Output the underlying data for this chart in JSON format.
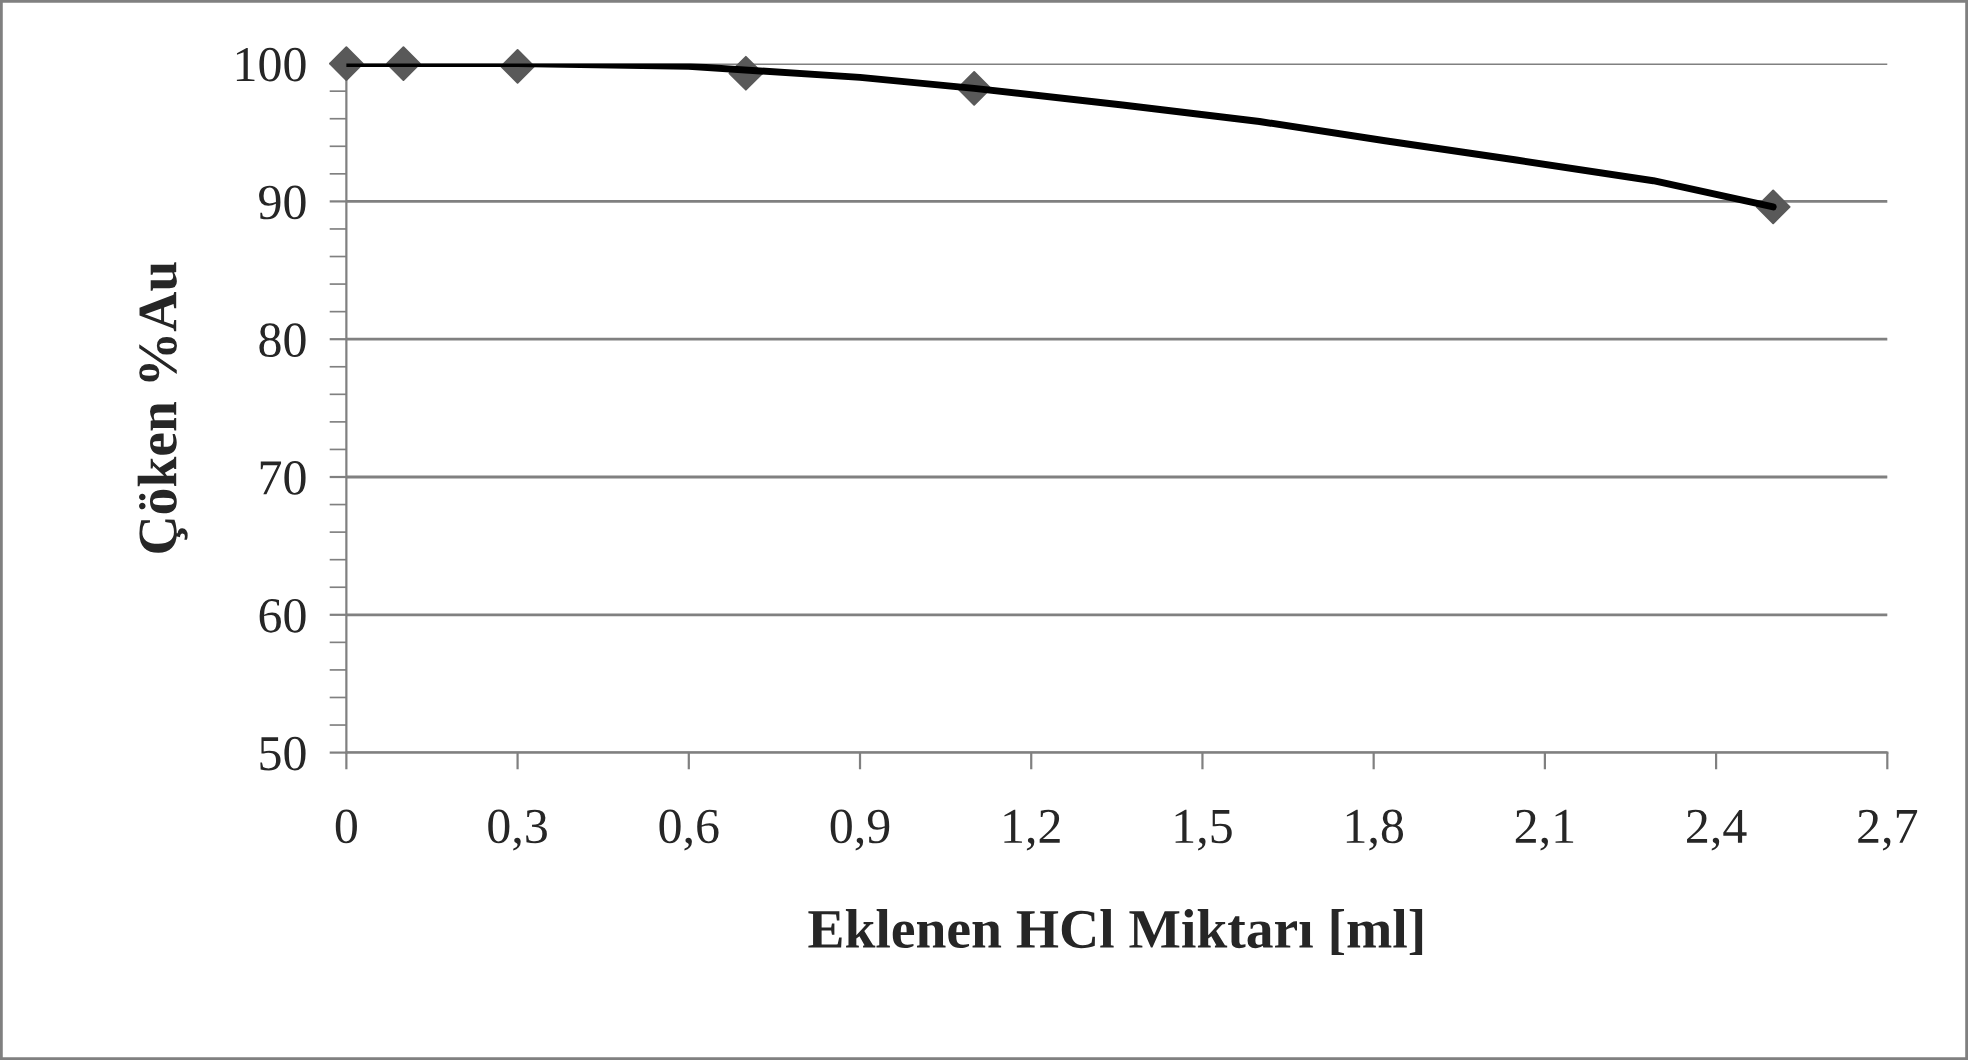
{
  "chart_data": {
    "type": "scatter",
    "xlabel": "Eklenen HCl Miktarı [ml]",
    "ylabel": "Çöken %Au",
    "series": [
      {
        "color": "#595959",
        "marker": "diamond",
        "x": [
          0,
          0.1,
          0.3,
          0.7,
          1.1,
          2.5
        ],
        "values": [
          100,
          100,
          99.8,
          99.3,
          98.2,
          89.6
        ]
      },
      {
        "type": "line",
        "color": "#000000",
        "marker": "none",
        "line_style": "solid",
        "x": [
          0,
          0.3,
          0.6,
          0.9,
          1.1,
          1.36,
          1.6,
          1.82,
          2.05,
          2.29,
          2.5
        ],
        "values": [
          100,
          100,
          99.8,
          99.0,
          98.2,
          97.0,
          95.8,
          94.4,
          93.0,
          91.5,
          89.6
        ]
      }
    ],
    "xlim": [
      0,
      2.7
    ],
    "xticks": [
      0,
      {
        "value": 0.3,
        "label": "0,3"
      },
      {
        "value": 0.6,
        "label": "0,6"
      },
      {
        "value": 0.9,
        "label": "0,9"
      },
      {
        "value": 1.2,
        "label": "1,2"
      },
      {
        "value": 1.5,
        "label": "1,5"
      },
      {
        "value": 1.8,
        "label": "1,8"
      },
      {
        "value": 2.1,
        "label": "2,1"
      },
      {
        "value": 2.4,
        "label": "2,4"
      },
      {
        "value": 2.7,
        "label": "2,7"
      }
    ],
    "ylim": [
      50,
      100
    ],
    "yticks": [
      50,
      60,
      70,
      80,
      90,
      100
    ],
    "grid": "y",
    "legend": false
  }
}
